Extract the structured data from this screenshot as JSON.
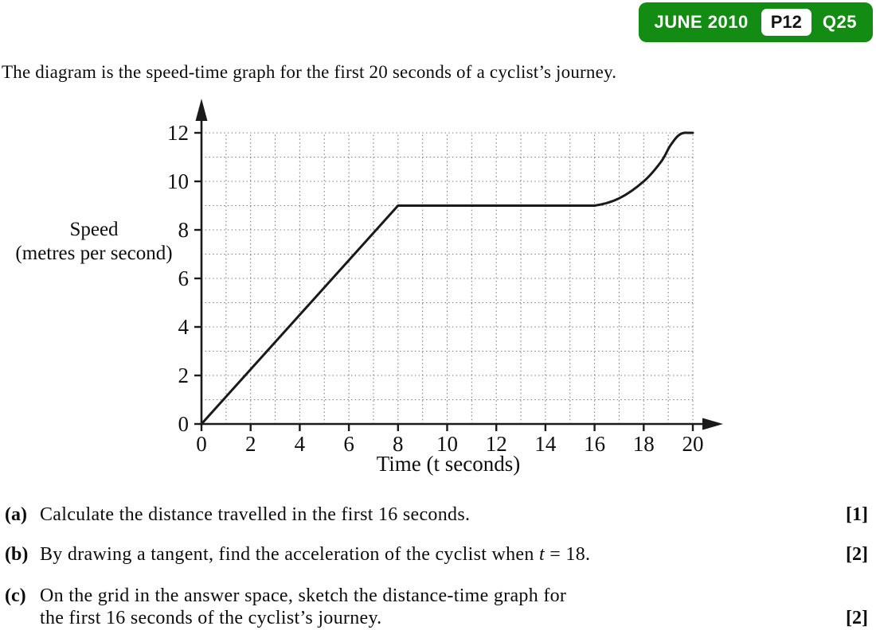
{
  "badge": {
    "session": "JUNE 2010",
    "paper": "P12",
    "question": "Q25",
    "green": "#128c12",
    "paper_box_bg": "#ffffff",
    "paper_box_text": "#141414",
    "session_text_color": "#ffffff"
  },
  "intro": "The diagram is the speed-time graph for the first 20 seconds of a cyclist’s journey.",
  "chart_data": {
    "type": "line",
    "title": "",
    "xlabel": "Time (t seconds)",
    "ylabel_line1": "Speed",
    "ylabel_line2": "(metres per second)",
    "xlim": [
      0,
      20
    ],
    "ylim": [
      0,
      12
    ],
    "xticks": [
      0,
      2,
      4,
      6,
      8,
      10,
      12,
      14,
      16,
      18,
      20
    ],
    "yticks": [
      0,
      2,
      4,
      6,
      8,
      10,
      12
    ],
    "grid": {
      "step_x": 1,
      "step_y": 1,
      "style": "dotted",
      "color": "#7d7d7d"
    },
    "axis_color": "#1a1a1a",
    "line_color": "#1a1a1a",
    "series": [
      {
        "name": "cyclist-speed",
        "description": "speed of cyclist over first 20 seconds",
        "linear_points": [
          [
            0,
            0
          ],
          [
            8,
            9
          ],
          [
            16,
            9
          ]
        ],
        "smooth_points": [
          [
            16,
            9
          ],
          [
            17,
            9.3
          ],
          [
            18,
            10
          ],
          [
            18.7,
            10.8
          ],
          [
            19.1,
            11.5
          ],
          [
            19.5,
            11.95
          ],
          [
            20,
            12
          ]
        ]
      }
    ]
  },
  "questions": [
    {
      "label": "(a)",
      "text": "Calculate the distance travelled in the first 16 seconds.",
      "marks": "[1]"
    },
    {
      "label": "(b)",
      "text_pre": "By drawing a tangent, find the acceleration of the cyclist when ",
      "text_italic": "t",
      "text_post": " = 18.",
      "marks": "[2]"
    },
    {
      "label": "(c)",
      "line1": "On the grid in the answer space, sketch the distance-time graph for",
      "line2": "the first 16 seconds of the cyclist’s journey.",
      "marks": "[2]"
    }
  ]
}
